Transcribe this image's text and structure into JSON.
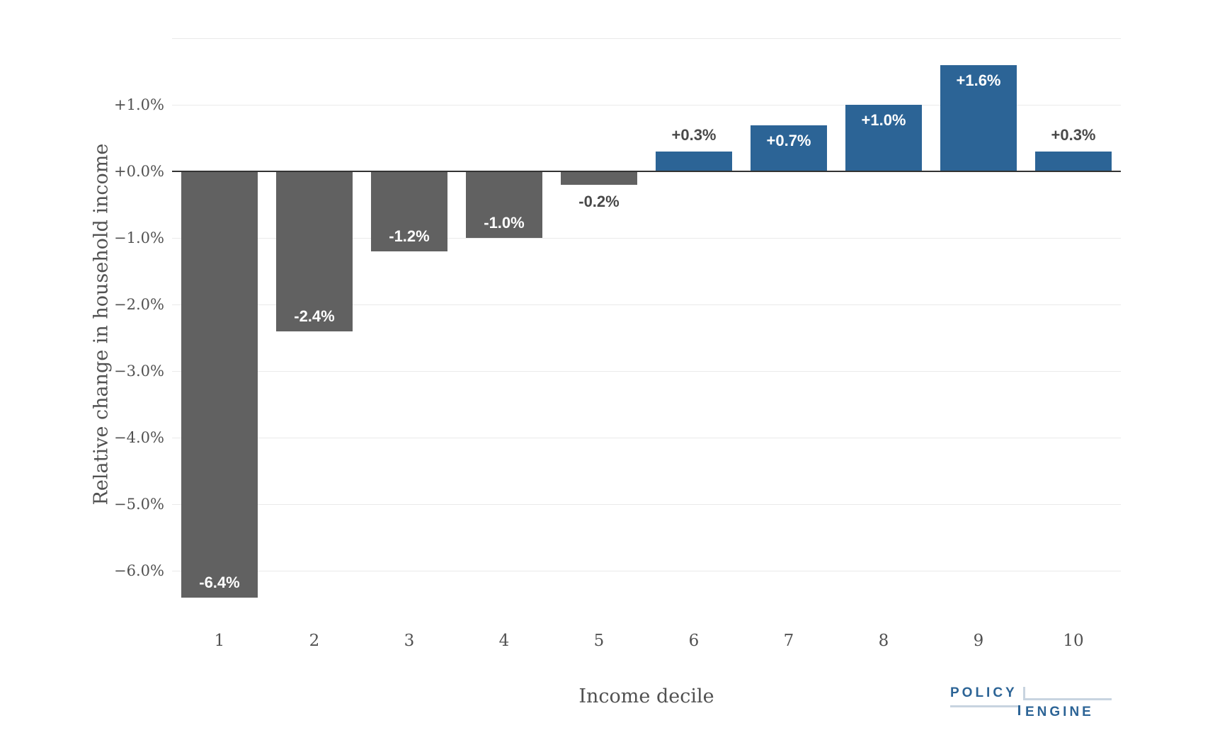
{
  "chart_data": {
    "type": "bar",
    "title": "",
    "xlabel": "Income decile",
    "ylabel": "Relative change in household income",
    "categories": [
      "1",
      "2",
      "3",
      "4",
      "5",
      "6",
      "7",
      "8",
      "9",
      "10"
    ],
    "values": [
      -6.4,
      -2.4,
      -1.2,
      -1.0,
      -0.2,
      0.3,
      0.7,
      1.0,
      1.6,
      0.3
    ],
    "bar_labels": [
      "-6.4%",
      "-2.4%",
      "-1.2%",
      "-1.0%",
      "-0.2%",
      "+0.3%",
      "+0.7%",
      "+1.0%",
      "+1.6%",
      "+0.3%"
    ],
    "label_inside": [
      true,
      true,
      true,
      true,
      false,
      false,
      true,
      true,
      true,
      false
    ],
    "ylim": [
      -6.7,
      2.1
    ],
    "grid": true,
    "legend": false,
    "y_ticks": [
      {
        "value": 1,
        "label": "+1.0%"
      },
      {
        "value": 0,
        "label": "+0.0%"
      },
      {
        "value": -1,
        "label": "−1.0%"
      },
      {
        "value": -2,
        "label": "−2.0%"
      },
      {
        "value": -3,
        "label": "−3.0%"
      },
      {
        "value": -4,
        "label": "−4.0%"
      },
      {
        "value": -5,
        "label": "−5.0%"
      },
      {
        "value": -6,
        "label": "−6.0%"
      }
    ],
    "extra_gridlines": [
      2
    ],
    "colors": {
      "positive_bar": "#2C6496",
      "negative_bar": "#616161",
      "label_inside": "#FFFFFF",
      "label_outside": "#494949",
      "gridline": "#EAEAEA",
      "zeroline": "#333333",
      "axis_text": "#515151"
    }
  },
  "branding": {
    "logo_top": "POLICY",
    "logo_bottom": "ENGINE",
    "logo_text_color": "#2C6496",
    "logo_line_color": "#C8D4E0"
  }
}
